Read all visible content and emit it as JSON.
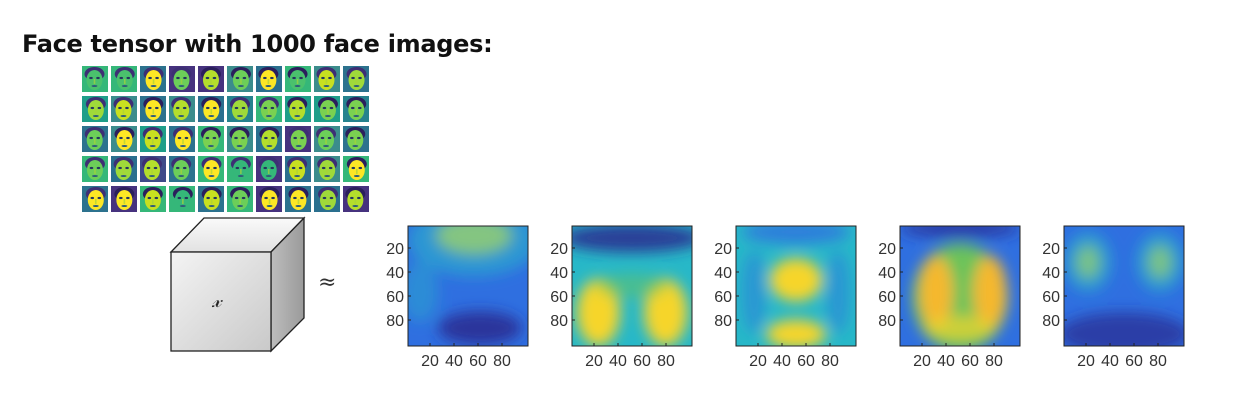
{
  "title": "Face tensor with 1000 face images:",
  "face_grid": {
    "rows": 5,
    "cols": 10,
    "colormap": "viridis"
  },
  "tensor": {
    "symbol": "𝓍",
    "approx_symbol": "≈"
  },
  "panels": [
    {
      "yticks": [
        "20",
        "40",
        "60",
        "80"
      ],
      "xticks": [
        "20",
        "40",
        "60",
        "80"
      ]
    },
    {
      "yticks": [
        "20",
        "40",
        "60",
        "80"
      ],
      "xticks": [
        "20",
        "40",
        "60",
        "80"
      ]
    },
    {
      "yticks": [
        "20",
        "40",
        "60",
        "80"
      ],
      "xticks": [
        "20",
        "40",
        "60",
        "80"
      ]
    },
    {
      "yticks": [
        "20",
        "40",
        "60",
        "80"
      ],
      "xticks": [
        "20",
        "40",
        "60",
        "80"
      ]
    },
    {
      "yticks": [
        "20",
        "40",
        "60",
        "80"
      ],
      "xticks": [
        "20",
        "40",
        "60",
        "80"
      ]
    }
  ],
  "colors": {
    "dark": "#2a2a8f",
    "blue": "#2f6fe0",
    "cyan": "#27b8c8",
    "green": "#6cc35a",
    "yellow": "#f6d52a",
    "orange": "#f5b82e"
  }
}
